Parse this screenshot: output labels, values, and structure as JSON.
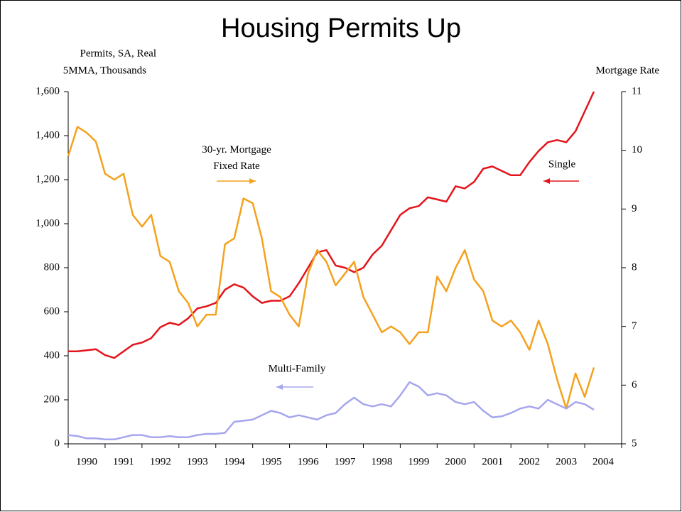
{
  "chart_data": {
    "type": "line",
    "title": "Housing Permits Up",
    "y_label": [
      "Permits, SA, Real",
      "5MMA, Thousands"
    ],
    "y2_label": "Mortgage Rate",
    "categories": [
      null,
      null,
      "1990",
      null,
      null,
      null,
      "1991",
      null,
      null,
      null,
      "1992",
      null,
      null,
      null,
      "1993",
      null,
      null,
      null,
      "1994",
      null,
      null,
      null,
      "1995",
      null,
      null,
      null,
      "1996",
      null,
      null,
      null,
      "1997",
      null,
      null,
      null,
      "1998",
      null,
      null,
      null,
      "1999",
      null,
      null,
      null,
      "2000",
      null,
      null,
      null,
      "2001",
      null,
      null,
      null,
      "2002",
      null,
      null,
      null,
      "2003",
      null,
      null,
      null,
      "2004",
      null
    ],
    "ylim": [
      0,
      1600
    ],
    "yticks": [
      0,
      200,
      400,
      600,
      800,
      {
        "value": 1000,
        "label": "1,000"
      },
      {
        "value": 1200,
        "label": "1,200"
      },
      {
        "value": 1400,
        "label": "1,400"
      },
      {
        "value": 1600,
        "label": "1,600"
      }
    ],
    "y2lim": [
      5,
      11
    ],
    "y2ticks": [
      5,
      6,
      7,
      8,
      9,
      10,
      11
    ],
    "series": [
      {
        "name": "Single",
        "color": "#e3151b",
        "values": [
          420,
          420,
          425,
          430,
          403,
          390,
          420,
          450,
          460,
          480,
          530,
          550,
          540,
          570,
          615,
          625,
          640,
          700,
          725,
          710,
          670,
          640,
          650,
          650,
          670,
          730,
          800,
          870,
          880,
          810,
          800,
          780,
          800,
          860,
          900,
          970,
          1040,
          1070,
          1080,
          1120,
          1110,
          1100,
          1170,
          1160,
          1190,
          1250,
          1260,
          1240,
          1220,
          1220,
          1280,
          1330,
          1370,
          1380,
          1370,
          1420,
          1510,
          1600,
          null,
          null
        ]
      },
      {
        "name": "30-yr. Mortgage Fixed Rate",
        "color": "#f5a11d",
        "axis": "y2",
        "values": [
          9.9,
          10.4,
          10.3,
          10.15,
          9.6,
          9.5,
          9.6,
          8.9,
          8.7,
          8.9,
          8.2,
          8.1,
          7.6,
          7.4,
          7.0,
          7.2,
          7.2,
          8.4,
          8.5,
          9.18,
          9.1,
          8.5,
          7.6,
          7.5,
          7.2,
          7.0,
          7.9,
          8.3,
          8.1,
          7.7,
          7.9,
          8.1,
          7.5,
          7.2,
          6.9,
          7.0,
          6.9,
          6.7,
          6.9,
          6.9,
          7.85,
          7.6,
          8.0,
          8.3,
          7.8,
          7.6,
          7.1,
          7.0,
          7.1,
          6.9,
          6.6,
          7.1,
          6.7,
          6.1,
          5.6,
          6.2,
          5.8,
          6.3,
          null,
          null
        ]
      },
      {
        "name": "Multi-Family",
        "color": "#a6a6ee",
        "values": [
          40,
          35,
          25,
          25,
          20,
          20,
          30,
          40,
          40,
          30,
          30,
          35,
          30,
          30,
          40,
          45,
          45,
          50,
          100,
          105,
          110,
          130,
          150,
          140,
          120,
          130,
          120,
          110,
          130,
          140,
          180,
          210,
          180,
          170,
          180,
          170,
          220,
          280,
          260,
          220,
          230,
          220,
          190,
          180,
          190,
          150,
          120,
          125,
          140,
          160,
          170,
          160,
          200,
          180,
          160,
          190,
          180,
          155,
          null,
          null
        ]
      }
    ]
  }
}
